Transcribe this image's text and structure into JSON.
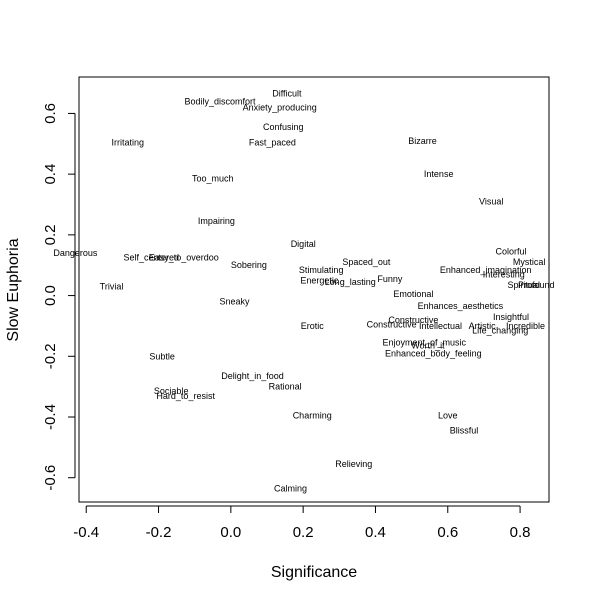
{
  "chart_data": {
    "type": "scatter",
    "title": "",
    "xlabel": "Significance",
    "ylabel": "Slow Euphoria",
    "xlim": [
      -0.42,
      0.88
    ],
    "ylim": [
      -0.68,
      0.72
    ],
    "xticks": [
      "-0.4",
      "-0.2",
      "0.0",
      "0.2",
      "0.4",
      "0.6",
      "0.8"
    ],
    "xtick_values": [
      -0.4,
      -0.2,
      0.0,
      0.2,
      0.4,
      0.6,
      0.8
    ],
    "yticks": [
      "-0.6",
      "-0.4",
      "-0.2",
      "0.0",
      "0.2",
      "0.4",
      "0.6"
    ],
    "ytick_values": [
      -0.6,
      -0.4,
      -0.2,
      0.0,
      0.2,
      0.4,
      0.6
    ],
    "grid": false,
    "points": [
      {
        "label": "Difficult",
        "x": 0.155,
        "y": 0.665
      },
      {
        "label": "Bodily_discomfort",
        "x": -0.03,
        "y": 0.64
      },
      {
        "label": "Anxiety_producing",
        "x": 0.135,
        "y": 0.62
      },
      {
        "label": "Irritating",
        "x": -0.285,
        "y": 0.505
      },
      {
        "label": "Confusing",
        "x": 0.145,
        "y": 0.555
      },
      {
        "label": "Fast_paced",
        "x": 0.115,
        "y": 0.505
      },
      {
        "label": "Bizarre",
        "x": 0.53,
        "y": 0.51
      },
      {
        "label": "Intense",
        "x": 0.575,
        "y": 0.4
      },
      {
        "label": "Too_much",
        "x": -0.05,
        "y": 0.385
      },
      {
        "label": "Visual",
        "x": 0.72,
        "y": 0.31
      },
      {
        "label": "Impairing",
        "x": -0.04,
        "y": 0.245
      },
      {
        "label": "Digital",
        "x": 0.2,
        "y": 0.17
      },
      {
        "label": "Colorful",
        "x": 0.775,
        "y": 0.145
      },
      {
        "label": "Dangerous",
        "x": -0.43,
        "y": 0.14
      },
      {
        "label": "Self_centered",
        "x": -0.22,
        "y": 0.125
      },
      {
        "label": "Easy_to_overdoo",
        "x": -0.13,
        "y": 0.125
      },
      {
        "label": "Spaced_out",
        "x": 0.375,
        "y": 0.11
      },
      {
        "label": "Mystical",
        "x": 0.825,
        "y": 0.11
      },
      {
        "label": "Sobering",
        "x": 0.05,
        "y": 0.1
      },
      {
        "label": "Stimulating",
        "x": 0.25,
        "y": 0.085
      },
      {
        "label": "Enhanced_imagination",
        "x": 0.705,
        "y": 0.085
      },
      {
        "label": "Interesting",
        "x": 0.755,
        "y": 0.07
      },
      {
        "label": "Funny",
        "x": 0.44,
        "y": 0.055
      },
      {
        "label": "Energetic",
        "x": 0.245,
        "y": 0.05
      },
      {
        "label": "Long_lasting",
        "x": 0.33,
        "y": 0.045
      },
      {
        "label": "Spiritual",
        "x": 0.81,
        "y": 0.035
      },
      {
        "label": "Profound",
        "x": 0.845,
        "y": 0.035
      },
      {
        "label": "Trivial",
        "x": -0.33,
        "y": 0.03
      },
      {
        "label": "Emotional",
        "x": 0.505,
        "y": 0.005
      },
      {
        "label": "Sneaky",
        "x": 0.01,
        "y": -0.02
      },
      {
        "label": "Enhances_aesthetics",
        "x": 0.635,
        "y": -0.035
      },
      {
        "label": "Insightful",
        "x": 0.775,
        "y": -0.07
      },
      {
        "label": "Constructive",
        "x": 0.505,
        "y": -0.08
      },
      {
        "label": "Constructive",
        "x": 0.445,
        "y": -0.095
      },
      {
        "label": "Intellectual",
        "x": 0.58,
        "y": -0.1
      },
      {
        "label": "Artistic",
        "x": 0.695,
        "y": -0.1
      },
      {
        "label": "Incredible",
        "x": 0.815,
        "y": -0.1
      },
      {
        "label": "Erotic",
        "x": 0.225,
        "y": -0.1
      },
      {
        "label": "Life_changing",
        "x": 0.745,
        "y": -0.115
      },
      {
        "label": "Enjoyment_of_music",
        "x": 0.535,
        "y": -0.155
      },
      {
        "label": "Worth_it",
        "x": 0.545,
        "y": -0.165
      },
      {
        "label": "Enhanced_body_feeling",
        "x": 0.56,
        "y": -0.19
      },
      {
        "label": "Subtle",
        "x": -0.19,
        "y": -0.2
      },
      {
        "label": "Delight_in_food",
        "x": 0.06,
        "y": -0.265
      },
      {
        "label": "Rational",
        "x": 0.15,
        "y": -0.3
      },
      {
        "label": "Sociable",
        "x": -0.165,
        "y": -0.315
      },
      {
        "label": "Hard_to_resist",
        "x": -0.125,
        "y": -0.33
      },
      {
        "label": "Charming",
        "x": 0.225,
        "y": -0.395
      },
      {
        "label": "Love",
        "x": 0.6,
        "y": -0.395
      },
      {
        "label": "Blissful",
        "x": 0.645,
        "y": -0.445
      },
      {
        "label": "Relieving",
        "x": 0.34,
        "y": -0.555
      },
      {
        "label": "Calming",
        "x": 0.165,
        "y": -0.635
      }
    ]
  }
}
